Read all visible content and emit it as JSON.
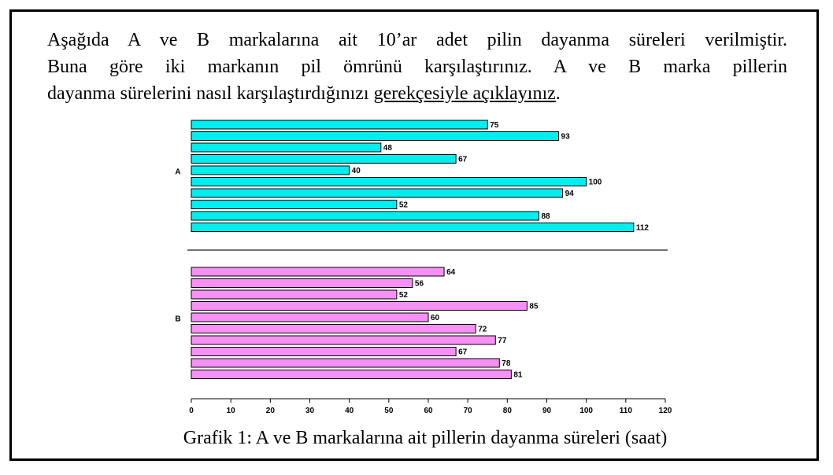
{
  "paragraph": {
    "lines": [
      "Aşağıda A ve B markalarına ait 10’ar adet pilin dayanma süreleri verilmiştir.",
      "Buna göre iki markanın pil ömrünü karşılaştırınız.  A ve B marka pillerin"
    ],
    "last_line": "dayanma sürelerini nasıl karşılaştırdığınızı ",
    "underlined": "gerekçesiyle açıklayınız",
    "end": "."
  },
  "chart_data": {
    "type": "bar",
    "orientation": "horizontal",
    "title": "Grafik 1: A ve B markalarına ait pillerin dayanma süreleri (saat)",
    "series": [
      {
        "name": "A",
        "color": "#00eeee",
        "values": [
          75,
          93,
          48,
          67,
          40,
          100,
          94,
          52,
          88,
          112
        ]
      },
      {
        "name": "B",
        "color": "#f690f4",
        "values": [
          64,
          56,
          52,
          85,
          60,
          72,
          77,
          67,
          78,
          81
        ]
      }
    ],
    "xlim": [
      0,
      120
    ],
    "xticks": [
      0,
      10,
      20,
      30,
      40,
      50,
      60,
      70,
      80,
      90,
      100,
      110,
      120
    ]
  }
}
